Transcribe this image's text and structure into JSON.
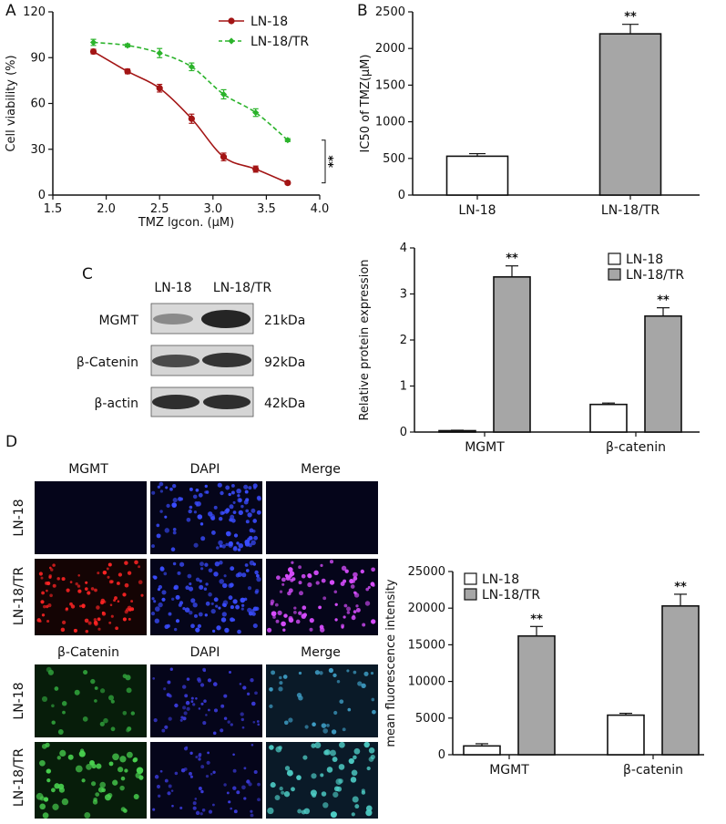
{
  "chart_data": [
    {
      "type": "scatter",
      "panel": "A",
      "xlabel": "TMZ lgcon. (μM)",
      "ylabel": "Cell viability (%)",
      "xlim": [
        1.5,
        4.0
      ],
      "ylim": [
        0,
        120
      ],
      "xticks": [
        "1.5",
        "2.0",
        "2.5",
        "3.0",
        "3.5",
        "4.0"
      ],
      "yticks": [
        "0",
        "30",
        "60",
        "90",
        "120"
      ],
      "legend_position": "top-right",
      "significance": "**",
      "series": [
        {
          "name": "LN-18",
          "color": "#a31515",
          "line": "solid",
          "x": [
            1.88,
            2.2,
            2.5,
            2.8,
            3.1,
            3.4,
            3.7
          ],
          "y": [
            94,
            81,
            70,
            50,
            25,
            17,
            8
          ],
          "err": [
            1.5,
            1.5,
            2.5,
            3,
            2.5,
            2,
            1
          ]
        },
        {
          "name": "LN-18/TR",
          "color": "#2bb32b",
          "line": "dashed",
          "x": [
            1.88,
            2.2,
            2.5,
            2.8,
            3.1,
            3.4,
            3.7
          ],
          "y": [
            100,
            98,
            93,
            84,
            66,
            54,
            36
          ],
          "err": [
            2,
            1,
            3,
            2.5,
            3,
            2.5,
            1
          ]
        }
      ]
    },
    {
      "type": "bar",
      "panel": "B",
      "categories": [
        "LN-18",
        "LN-18/TR"
      ],
      "ylabel": "IC50 of TMZ(μM)",
      "ylim": [
        0,
        2500
      ],
      "yticks": [
        "0",
        "500",
        "1000",
        "1500",
        "2000",
        "2500"
      ],
      "series": [
        {
          "values": [
            530,
            2200
          ],
          "err": [
            35,
            130
          ],
          "colors": [
            "#ffffff",
            "#a6a6a6"
          ],
          "stars": [
            "",
            "**"
          ]
        }
      ]
    },
    {
      "type": "bar",
      "panel": "C-right",
      "categories": [
        "MGMT",
        "β-catenin"
      ],
      "ylabel": "Relative protein expression",
      "ylim": [
        0,
        4
      ],
      "yticks": [
        "0",
        "1",
        "2",
        "3",
        "4"
      ],
      "legend_position": "top-right",
      "series": [
        {
          "name": "LN-18",
          "color": "#ffffff",
          "values": [
            0.03,
            0.6
          ],
          "err": [
            0.01,
            0.03
          ],
          "stars": [
            "",
            ""
          ]
        },
        {
          "name": "LN-18/TR",
          "color": "#a6a6a6",
          "values": [
            3.37,
            2.52
          ],
          "err": [
            0.24,
            0.18
          ],
          "stars": [
            "**",
            "**"
          ]
        }
      ]
    },
    {
      "type": "bar",
      "panel": "D-right",
      "categories": [
        "MGMT",
        "β-catenin"
      ],
      "ylabel": "mean fluorescence intensity",
      "ylim": [
        0,
        25000
      ],
      "yticks": [
        "0",
        "5000",
        "10000",
        "15000",
        "20000",
        "25000"
      ],
      "legend_position": "top-left",
      "series": [
        {
          "name": "LN-18",
          "color": "#ffffff",
          "values": [
            1200,
            5400
          ],
          "err": [
            300,
            250
          ],
          "stars": [
            "",
            ""
          ]
        },
        {
          "name": "LN-18/TR",
          "color": "#a6a6a6",
          "values": [
            16200,
            20300
          ],
          "err": [
            1300,
            1600
          ],
          "stars": [
            "**",
            "**"
          ]
        }
      ]
    }
  ],
  "panels": {
    "a": "A",
    "b": "B",
    "c": "C",
    "d": "D"
  },
  "blot": {
    "columns": [
      "LN-18",
      "LN-18/TR"
    ],
    "rows": [
      {
        "protein": "MGMT",
        "size": "21kDa"
      },
      {
        "protein": "β-Catenin",
        "size": "92kDa"
      },
      {
        "protein": "β-actin",
        "size": "42kDa"
      }
    ]
  },
  "if_top": {
    "columns": [
      "MGMT",
      "DAPI",
      "Merge"
    ],
    "rows": [
      "LN-18",
      "LN-18/TR"
    ]
  },
  "if_bottom": {
    "columns": [
      "β-Catenin",
      "DAPI",
      "Merge"
    ],
    "rows": [
      "LN-18",
      "LN-18/TR"
    ]
  }
}
